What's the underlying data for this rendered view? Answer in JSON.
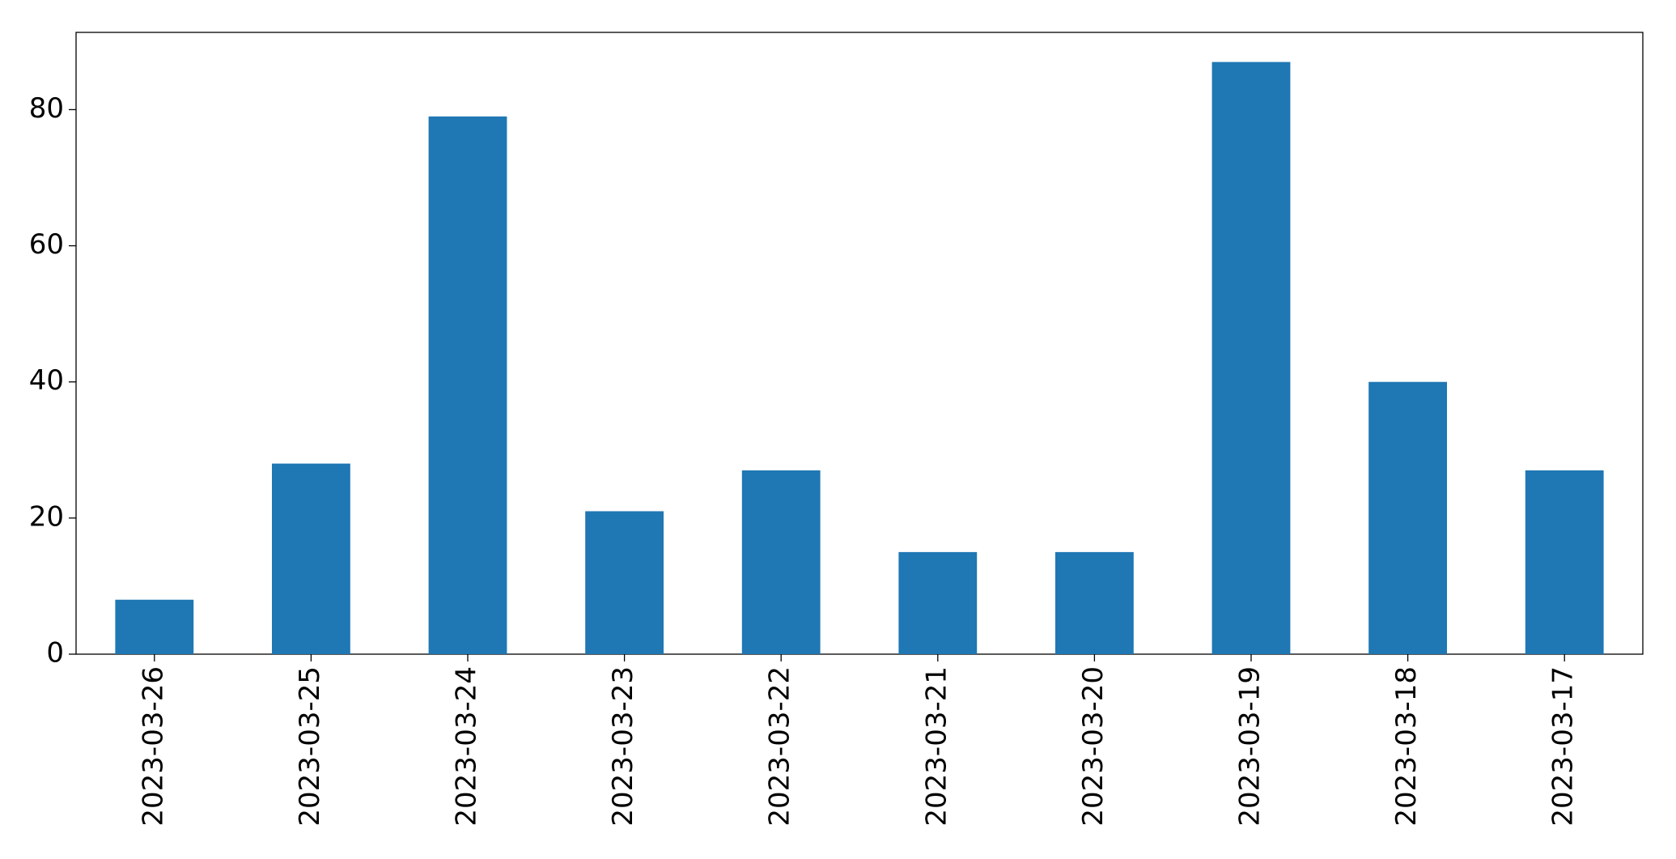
{
  "chart_data": {
    "type": "bar",
    "categories": [
      "2023-03-26",
      "2023-03-25",
      "2023-03-24",
      "2023-03-23",
      "2023-03-22",
      "2023-03-21",
      "2023-03-20",
      "2023-03-19",
      "2023-03-18",
      "2023-03-17"
    ],
    "values": [
      8,
      28,
      79,
      21,
      27,
      15,
      15,
      87,
      40,
      27
    ],
    "color": "#1f77b4",
    "ylim": [
      0,
      91.35
    ],
    "yticks": [
      0,
      20,
      40,
      60,
      80
    ],
    "grid": false
  }
}
